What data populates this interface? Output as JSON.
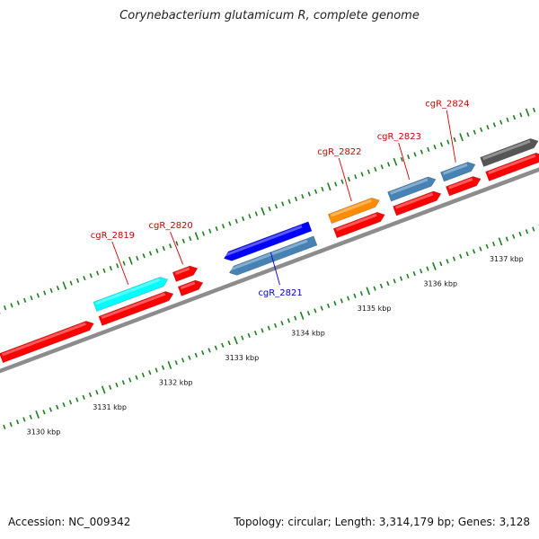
{
  "title": "Corynebacterium glutamicum R, complete genome",
  "footer": {
    "accession": "Accession: NC_009342",
    "stats": "Topology: circular; Length: 3,314,179 bp; Genes: 3,128"
  },
  "colors": {
    "backbone": "#8c8c8c",
    "tick": "#1e7d1e",
    "label_red": "#cc0000",
    "label_blue": "#0000cc"
  },
  "ruler": {
    "unit": "kbp",
    "labels": [
      "3130 kbp",
      "3131 kbp",
      "3132 kbp",
      "3133 kbp",
      "3134 kbp",
      "3135 kbp",
      "3136 kbp",
      "3137 kbp"
    ]
  },
  "genes": [
    {
      "label": "cgR_2819",
      "color": "#00ffff",
      "strand": "+",
      "start_kbp": 3131.3,
      "end_kbp": 3132.4,
      "label_color": "#cc0000"
    },
    {
      "label": "cgR_2820",
      "color": "#ff0000",
      "strand": "+",
      "start_kbp": 3132.5,
      "end_kbp": 3132.85,
      "label_color": "#cc0000"
    },
    {
      "label": "cgR_2821",
      "color": "#0000ff",
      "strand": "-",
      "start_kbp": 3133.25,
      "end_kbp": 3134.55,
      "label_color": "#0000cc"
    },
    {
      "label": "cgR_2822",
      "color": "#ff8c00",
      "strand": "+",
      "start_kbp": 3134.85,
      "end_kbp": 3135.6,
      "label_color": "#cc0000"
    },
    {
      "label": "cgR_2823",
      "color": "#4682b4",
      "strand": "+",
      "start_kbp": 3135.75,
      "end_kbp": 3136.45,
      "label_color": "#cc0000"
    },
    {
      "label": "cgR_2824",
      "color": "#4682b4",
      "strand": "+",
      "start_kbp": 3136.55,
      "end_kbp": 3137.05,
      "label_color": "#cc0000"
    },
    {
      "label": "",
      "color": "#555555",
      "strand": "+",
      "start_kbp": 3137.15,
      "end_kbp": 3138.0,
      "label_color": "#cc0000"
    }
  ],
  "cds": [
    {
      "color": "#ff0000",
      "strand": "+",
      "start_kbp": 3129.8,
      "end_kbp": 3131.2
    },
    {
      "color": "#ff0000",
      "strand": "+",
      "start_kbp": 3131.3,
      "end_kbp": 3132.4
    },
    {
      "color": "#ff0000",
      "strand": "+",
      "start_kbp": 3132.5,
      "end_kbp": 3132.85
    },
    {
      "color": "#4682b4",
      "strand": "-",
      "start_kbp": 3133.25,
      "end_kbp": 3134.55
    },
    {
      "color": "#ff0000",
      "strand": "+",
      "start_kbp": 3134.85,
      "end_kbp": 3135.6
    },
    {
      "color": "#ff0000",
      "strand": "+",
      "start_kbp": 3135.75,
      "end_kbp": 3136.45
    },
    {
      "color": "#ff0000",
      "strand": "+",
      "start_kbp": 3136.55,
      "end_kbp": 3137.05
    },
    {
      "color": "#ff0000",
      "strand": "+",
      "start_kbp": 3137.15,
      "end_kbp": 3138.0
    }
  ]
}
